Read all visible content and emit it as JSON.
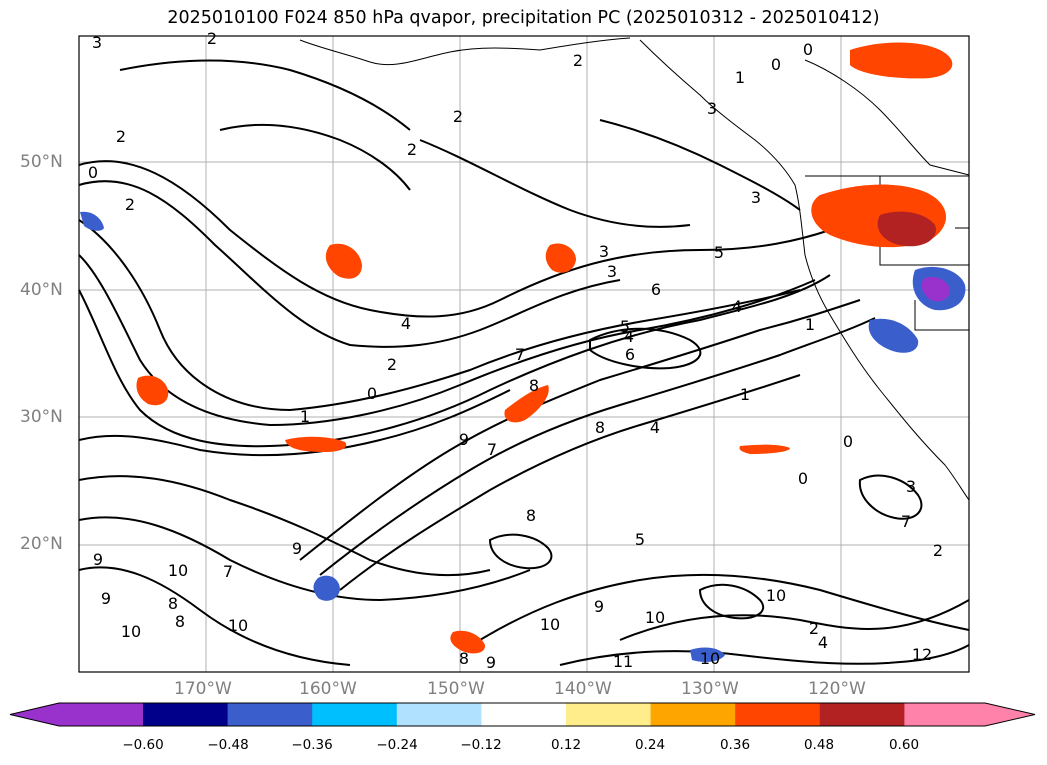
{
  "title": "2025010100 F024 850 hPa qvapor, precipitation PC (2025010312 - 2025010412)",
  "map": {
    "lon_labels": [
      "170°W",
      "160°W",
      "150°W",
      "140°W",
      "130°W",
      "120°W"
    ],
    "lat_labels": [
      "50°N",
      "40°N",
      "30°N",
      "20°N"
    ],
    "contour_labels": [
      "3",
      "2",
      "2",
      "0",
      "1",
      "0",
      "2",
      "2",
      "2",
      "3",
      "3",
      "3",
      "3",
      "5",
      "6",
      "4",
      "5",
      "6",
      "4",
      "8",
      "2",
      "1",
      "0",
      "4",
      "2",
      "0",
      "1",
      "7",
      "8",
      "9",
      "7",
      "1",
      "0",
      "4",
      "0",
      "3",
      "7",
      "2",
      "9",
      "8",
      "10",
      "9",
      "9",
      "10",
      "10",
      "8",
      "10",
      "5",
      "9",
      "10",
      "7",
      "8",
      "9",
      "11",
      "10",
      "12",
      "4",
      "2",
      "10",
      "8"
    ]
  },
  "colorbar": {
    "ticks": [
      "−0.60",
      "−0.48",
      "−0.36",
      "−0.24",
      "−0.12",
      "0.12",
      "0.24",
      "0.36",
      "0.48",
      "0.60"
    ],
    "colors": [
      "#9932cc",
      "#00008b",
      "#3a5fcd",
      "#00bfff",
      "#b0e2ff",
      "#ffffff",
      "#ffec8b",
      "#ffa500",
      "#ff4500",
      "#b22222",
      "#ff82ab"
    ]
  }
}
